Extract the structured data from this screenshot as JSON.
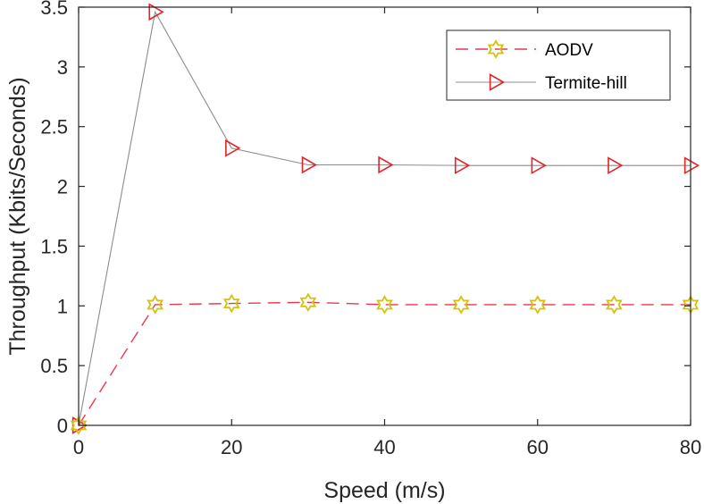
{
  "chart_data": {
    "type": "line",
    "title": "",
    "xlabel": "Speed (m/s)",
    "ylabel": "Throughput (Kbits/Seconds)",
    "xlim": [
      0,
      80
    ],
    "ylim": [
      0,
      3.5
    ],
    "xticks": [
      0,
      20,
      40,
      60,
      80
    ],
    "xtick_labels": [
      "0",
      "20",
      "40",
      "60",
      "80"
    ],
    "yticks": [
      0,
      0.5,
      1,
      1.5,
      2,
      2.5,
      3,
      3.5
    ],
    "ytick_labels": [
      "0",
      "0.5",
      "1",
      "1.5",
      "2",
      "2.5",
      "3",
      "3.5"
    ],
    "grid": false,
    "legend_position": "top-right",
    "x": [
      0,
      10,
      20,
      30,
      40,
      50,
      60,
      70,
      80
    ],
    "series": [
      {
        "name": "AODV",
        "line_color": "#e8384f",
        "line_style": "dashed",
        "marker": "hexagram",
        "marker_color": "#d4c20a",
        "values": [
          0,
          1.01,
          1.02,
          1.03,
          1.01,
          1.01,
          1.01,
          1.01,
          1.01
        ]
      },
      {
        "name": "Termite-hill",
        "line_color": "#8c8c8c",
        "line_style": "solid",
        "marker": "triangle-right",
        "marker_color": "#e3242b",
        "values": [
          0,
          3.46,
          2.32,
          2.18,
          2.18,
          2.175,
          2.175,
          2.175,
          2.175
        ]
      }
    ]
  }
}
